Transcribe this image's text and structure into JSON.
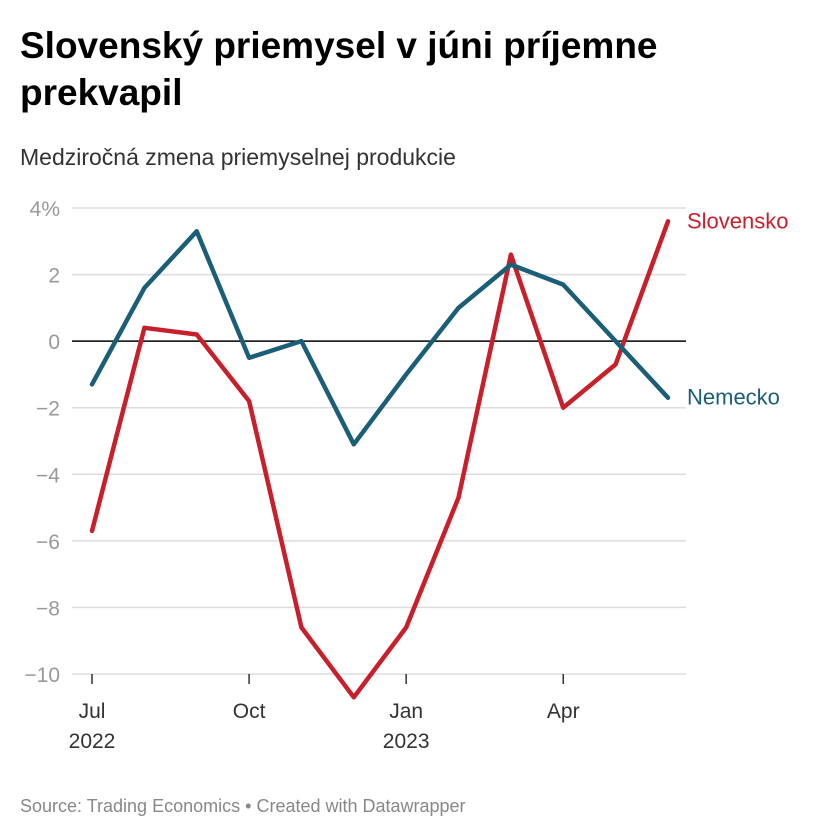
{
  "header": {
    "title": "Slovenský priemysel v júni príjemne prekvapil",
    "subtitle": "Medziročná zmena priemyselnej produkcie"
  },
  "footer": {
    "source": "Source: Trading Economics",
    "separator": "•",
    "credit": "Created with Datawrapper"
  },
  "chart_data": {
    "type": "line",
    "x": [
      "2022-07",
      "2022-08",
      "2022-09",
      "2022-10",
      "2022-11",
      "2022-12",
      "2023-01",
      "2023-02",
      "2023-03",
      "2023-04",
      "2023-05",
      "2023-06"
    ],
    "x_ticks": [
      {
        "x": "2022-07",
        "label": "Jul",
        "year": "2022"
      },
      {
        "x": "2022-10",
        "label": "Oct",
        "year": ""
      },
      {
        "x": "2023-01",
        "label": "Jan",
        "year": "2023"
      },
      {
        "x": "2023-04",
        "label": "Apr",
        "year": ""
      }
    ],
    "y_ticks": [
      {
        "value": 4,
        "label": "4%"
      },
      {
        "value": 2,
        "label": "2"
      },
      {
        "value": 0,
        "label": "0"
      },
      {
        "value": -2,
        "label": "−2"
      },
      {
        "value": -4,
        "label": "−4"
      },
      {
        "value": -6,
        "label": "−6"
      },
      {
        "value": -8,
        "label": "−8"
      },
      {
        "value": -10,
        "label": "−10"
      }
    ],
    "ylim": [
      -10,
      4
    ],
    "grid": true,
    "zero_line": true,
    "legend": "direct labels at line ends",
    "series": [
      {
        "name": "Slovensko",
        "color": "#c8202a",
        "values": [
          -5.7,
          0.4,
          0.2,
          -1.8,
          -8.6,
          -10.7,
          -8.6,
          -4.7,
          2.6,
          -2.0,
          -0.7,
          3.6
        ]
      },
      {
        "name": "Nemecko",
        "color": "#1b5e78",
        "values": [
          -1.3,
          1.6,
          3.3,
          -0.5,
          0.0,
          -3.1,
          -1.0,
          1.0,
          2.3,
          1.7,
          0.0,
          -1.7
        ]
      }
    ]
  }
}
